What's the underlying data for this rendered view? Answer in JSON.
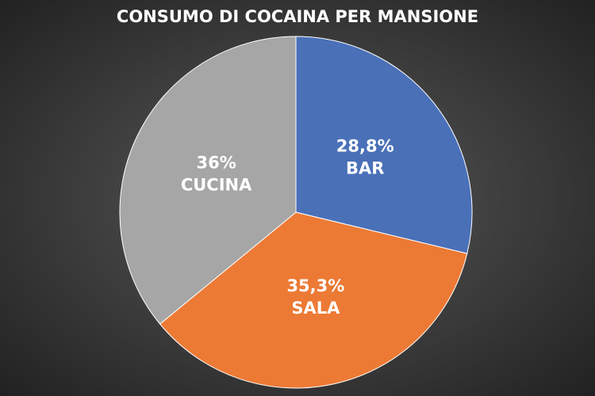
{
  "chart_data": {
    "type": "pie",
    "title": "CONSUMO DI COCAINA PER MANSIONE",
    "categories": [
      "BAR",
      "SALA",
      "CUCINA"
    ],
    "values": [
      28.8,
      35.3,
      36
    ],
    "value_labels": [
      "28,8%",
      "35,3%",
      "36%"
    ],
    "colors": [
      "#4a70b8",
      "#ec7a35",
      "#a6a6a6"
    ]
  }
}
